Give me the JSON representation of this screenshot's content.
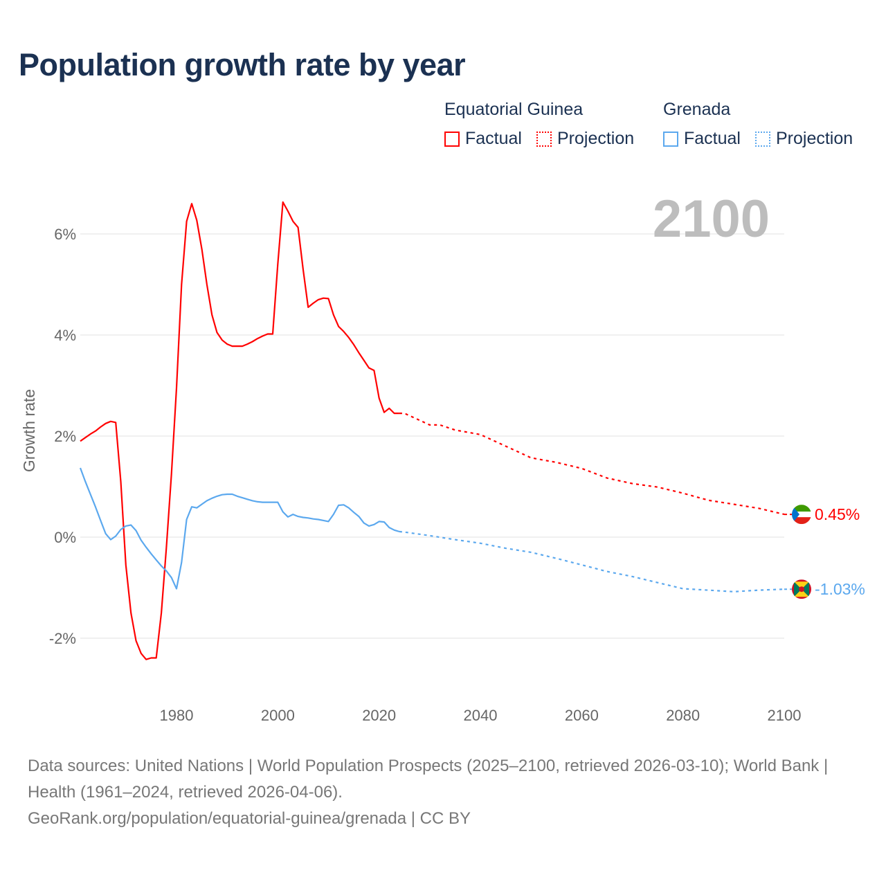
{
  "title": "Population growth rate by year",
  "legend": {
    "groups": [
      {
        "name": "Equatorial Guinea",
        "factual": "Factual",
        "projection": "Projection",
        "color": "#ff0000"
      },
      {
        "name": "Grenada",
        "factual": "Factual",
        "projection": "Projection",
        "color": "#5ba8ee"
      }
    ]
  },
  "year_overlay": "2100",
  "footer": {
    "line1": "Data sources: United Nations | World Population Prospects (2025–2100, retrieved 2026-03-10); World Bank | Health (1961–2024, retrieved 2026-04-06).",
    "line2": "GeoRank.org/population/equatorial-guinea/grenada | CC BY"
  },
  "chart_data": {
    "type": "line",
    "title": "Population growth rate by year",
    "xlabel": "",
    "ylabel": "Growth rate",
    "xlim": [
      1961,
      2100
    ],
    "ylim": [
      -3.1,
      7.0
    ],
    "x_ticks": [
      1980,
      2000,
      2020,
      2040,
      2060,
      2080,
      2100
    ],
    "x_tick_labels": [
      "1980",
      "2000",
      "2020",
      "2040",
      "2060",
      "2080",
      "2100"
    ],
    "y_ticks": [
      -2,
      0,
      2,
      4,
      6
    ],
    "y_tick_labels": [
      "-2%",
      "0%",
      "2%",
      "4%",
      "6%"
    ],
    "grid": true,
    "legend_position": "top-right",
    "series": [
      {
        "name": "Equatorial Guinea",
        "color": "#ff0000",
        "end_label": "0.45%",
        "factual": {
          "x": [
            1961,
            1962,
            1963,
            1964,
            1965,
            1966,
            1967,
            1968,
            1969,
            1970,
            1971,
            1972,
            1973,
            1974,
            1975,
            1976,
            1977,
            1978,
            1979,
            1980,
            1981,
            1982,
            1983,
            1984,
            1985,
            1986,
            1987,
            1988,
            1989,
            1990,
            1991,
            1992,
            1993,
            1994,
            1995,
            1996,
            1997,
            1998,
            1999,
            2000,
            2001,
            2002,
            2003,
            2004,
            2005,
            2006,
            2007,
            2008,
            2009,
            2010,
            2011,
            2012,
            2013,
            2014,
            2015,
            2016,
            2017,
            2018,
            2019,
            2020,
            2021,
            2022,
            2023,
            2024
          ],
          "y": [
            1.9,
            1.97,
            2.04,
            2.1,
            2.18,
            2.25,
            2.29,
            2.27,
            1.1,
            -0.55,
            -1.5,
            -2.05,
            -2.3,
            -2.42,
            -2.39,
            -2.39,
            -1.5,
            -0.2,
            1.25,
            2.95,
            5.0,
            6.25,
            6.6,
            6.27,
            5.7,
            5.0,
            4.4,
            4.05,
            3.9,
            3.82,
            3.78,
            3.78,
            3.78,
            3.82,
            3.87,
            3.93,
            3.98,
            4.02,
            4.02,
            5.4,
            6.63,
            6.45,
            6.25,
            6.13,
            5.3,
            4.55,
            4.63,
            4.7,
            4.73,
            4.72,
            4.4,
            4.17,
            4.07,
            3.95,
            3.81,
            3.65,
            3.5,
            3.35,
            3.3,
            2.75,
            2.47,
            2.55,
            2.45,
            2.45
          ]
        },
        "projection": {
          "x": [
            2024,
            2025,
            2030,
            2032,
            2035,
            2040,
            2045,
            2050,
            2055,
            2060,
            2065,
            2070,
            2075,
            2080,
            2085,
            2090,
            2095,
            2100
          ],
          "y": [
            2.45,
            2.45,
            2.22,
            2.22,
            2.12,
            2.03,
            1.8,
            1.57,
            1.48,
            1.36,
            1.17,
            1.06,
            0.99,
            0.87,
            0.73,
            0.65,
            0.57,
            0.45
          ]
        }
      },
      {
        "name": "Grenada",
        "color": "#5ba8ee",
        "end_label": "-1.03%",
        "factual": {
          "x": [
            1961,
            1962,
            1963,
            1964,
            1965,
            1966,
            1967,
            1968,
            1969,
            1970,
            1971,
            1972,
            1973,
            1974,
            1975,
            1976,
            1977,
            1978,
            1979,
            1980,
            1981,
            1982,
            1983,
            1984,
            1985,
            1986,
            1987,
            1988,
            1989,
            1990,
            1991,
            1992,
            1993,
            1994,
            1995,
            1996,
            1997,
            1998,
            1999,
            2000,
            2001,
            2002,
            2003,
            2004,
            2005,
            2006,
            2007,
            2008,
            2009,
            2010,
            2011,
            2012,
            2013,
            2014,
            2015,
            2016,
            2017,
            2018,
            2019,
            2020,
            2021,
            2022,
            2023,
            2024
          ],
          "y": [
            1.37,
            1.1,
            0.85,
            0.6,
            0.33,
            0.07,
            -0.05,
            0.02,
            0.15,
            0.22,
            0.24,
            0.13,
            -0.06,
            -0.2,
            -0.33,
            -0.45,
            -0.57,
            -0.67,
            -0.8,
            -1.02,
            -0.5,
            0.35,
            0.6,
            0.58,
            0.65,
            0.72,
            0.77,
            0.81,
            0.84,
            0.85,
            0.85,
            0.81,
            0.78,
            0.75,
            0.72,
            0.7,
            0.69,
            0.69,
            0.69,
            0.69,
            0.5,
            0.4,
            0.45,
            0.41,
            0.39,
            0.38,
            0.36,
            0.35,
            0.33,
            0.31,
            0.45,
            0.63,
            0.64,
            0.58,
            0.49,
            0.41,
            0.28,
            0.22,
            0.25,
            0.31,
            0.3,
            0.19,
            0.14,
            0.11
          ]
        },
        "projection": {
          "x": [
            2024,
            2025,
            2030,
            2035,
            2040,
            2045,
            2050,
            2055,
            2060,
            2065,
            2070,
            2075,
            2080,
            2085,
            2090,
            2095,
            2100
          ],
          "y": [
            0.11,
            0.1,
            0.03,
            -0.05,
            -0.12,
            -0.22,
            -0.3,
            -0.42,
            -0.55,
            -0.68,
            -0.78,
            -0.9,
            -1.02,
            -1.05,
            -1.08,
            -1.05,
            -1.03
          ]
        }
      }
    ]
  }
}
